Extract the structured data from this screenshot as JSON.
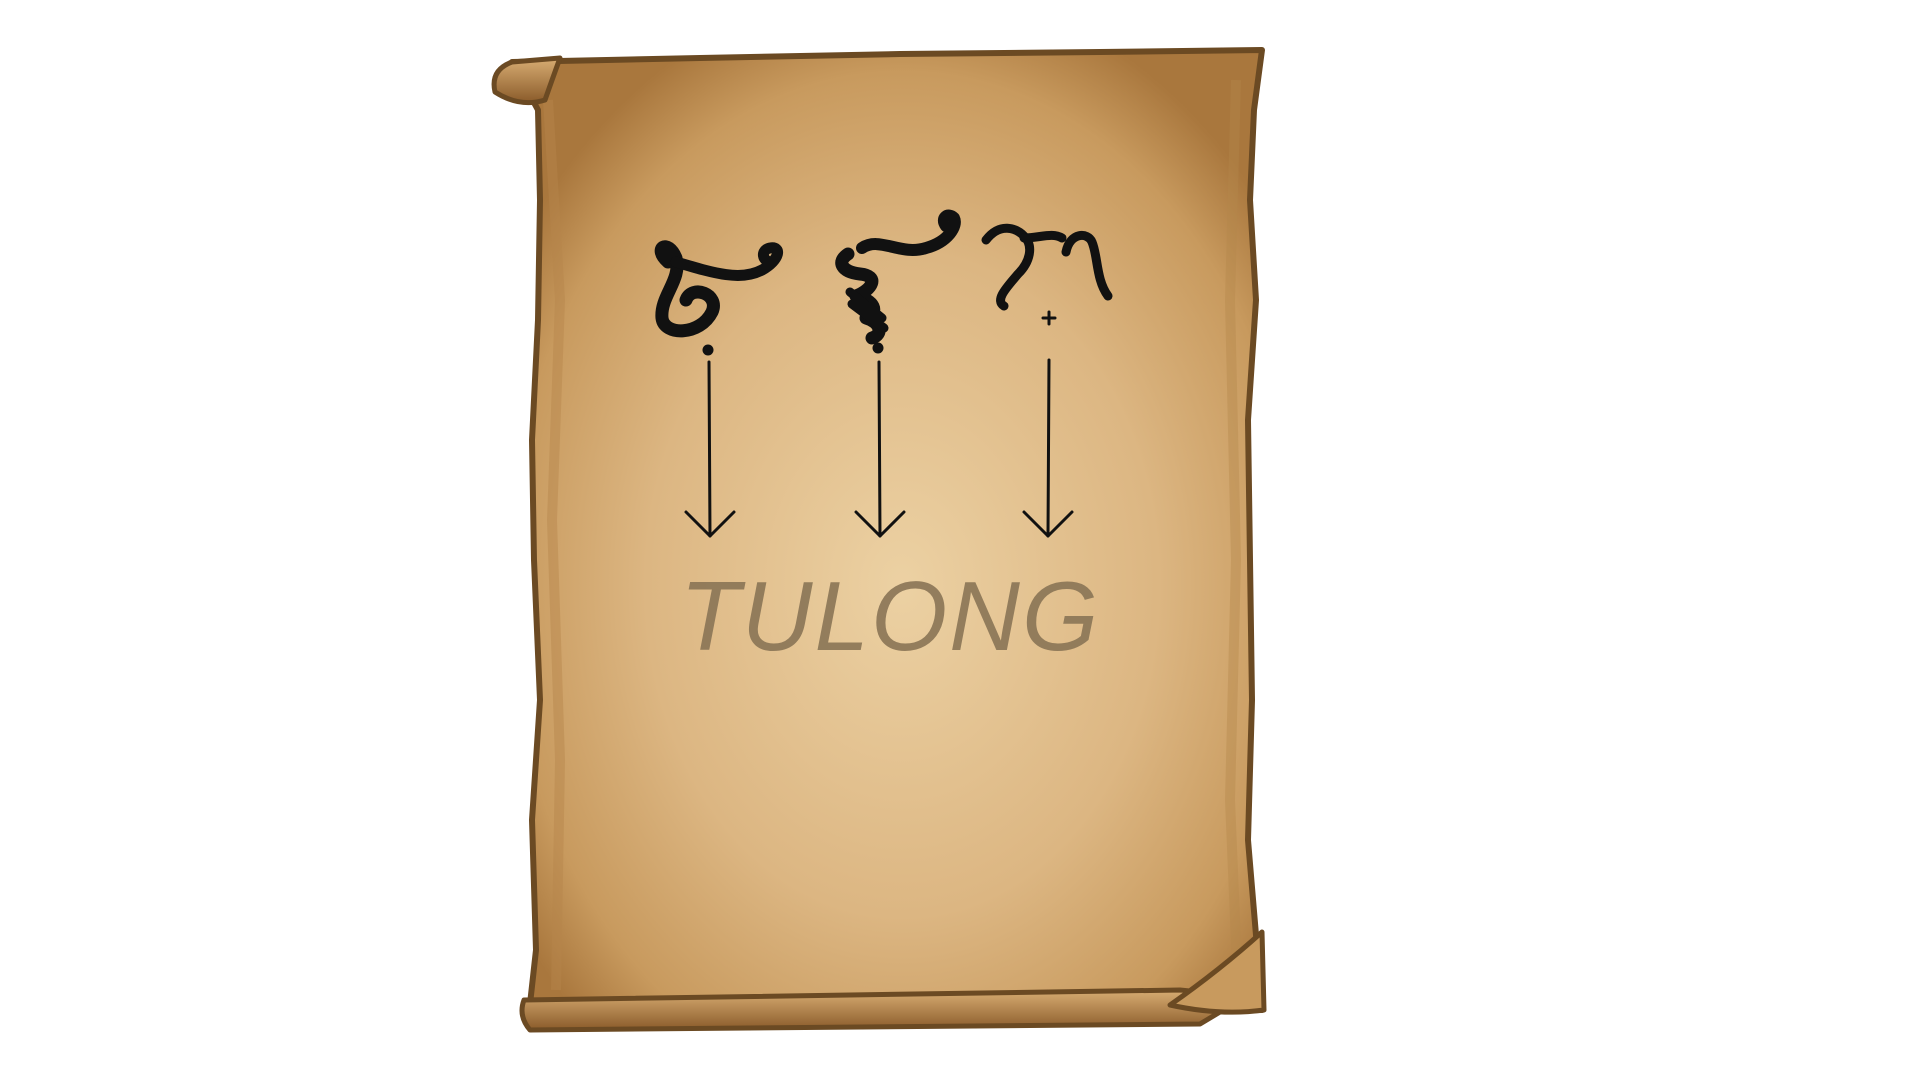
{
  "illustration": {
    "caption": "TULONG",
    "colors": {
      "parchment_light": "#e8c897",
      "parchment_mid": "#d6ae78",
      "parchment_dark": "#a9773d",
      "edge": "#6b4a23",
      "ink": "#111111",
      "caption": "#8a7556"
    },
    "glyphs": [
      {
        "name": "baybayin-tu-glyph",
        "mark": "dot-below"
      },
      {
        "name": "baybayin-lo-glyph",
        "mark": "dot-below"
      },
      {
        "name": "baybayin-ng-glyph",
        "mark": "cross-below"
      }
    ],
    "arrow_count": 3
  }
}
